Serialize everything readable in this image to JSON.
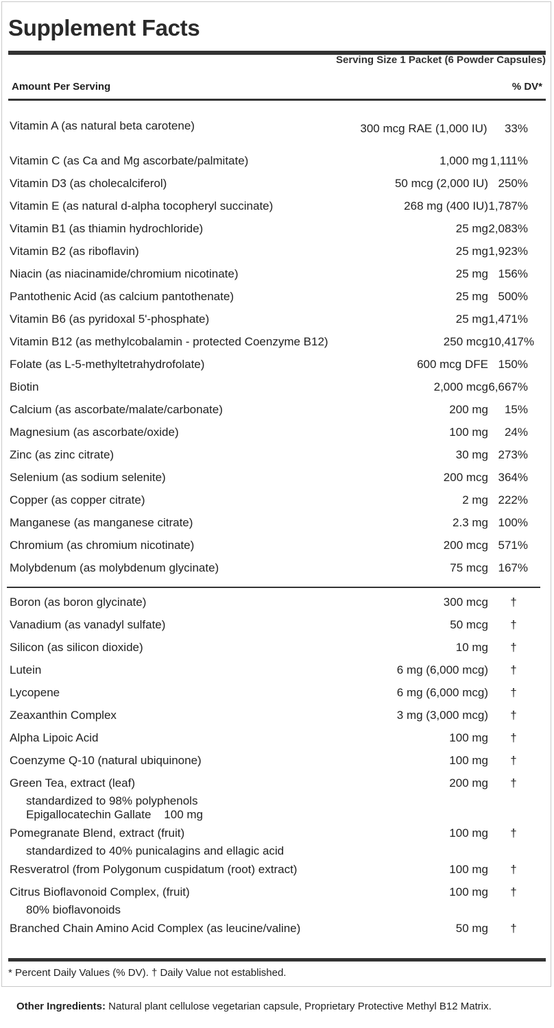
{
  "title": "Supplement Facts",
  "serving_size": "Serving Size 1 Packet (6 Powder Capsules)",
  "header": {
    "amount_per_serving": "Amount Per Serving",
    "dv": "% DV*"
  },
  "vitamin_rows": [
    {
      "name": "Vitamin A (as natural beta carotene)",
      "amount": "300 mcg RAE (1,000 IU)",
      "dv": "33%"
    },
    {
      "name": "Vitamin C (as Ca and Mg ascorbate/palmitate)",
      "amount": "1,000 mg",
      "dv": "1,111%"
    },
    {
      "name": "Vitamin D3 (as cholecalciferol)",
      "amount": "50 mcg (2,000 IU)",
      "dv": "250%"
    },
    {
      "name": "Vitamin E (as natural d-alpha tocopheryl succinate)",
      "amount": "268 mg (400 IU)",
      "dv": "1,787%"
    },
    {
      "name": "Vitamin B1 (as thiamin hydrochloride)",
      "amount": "25 mg",
      "dv": "2,083%"
    },
    {
      "name": "Vitamin B2 (as riboflavin)",
      "amount": "25 mg",
      "dv": "1,923%"
    },
    {
      "name": "Niacin (as niacinamide/chromium nicotinate)",
      "amount": "25 mg",
      "dv": "156%"
    },
    {
      "name": "Pantothenic Acid (as calcium pantothenate)",
      "amount": "25 mg",
      "dv": "500%"
    },
    {
      "name": "Vitamin B6 (as pyridoxal 5'-phosphate)",
      "amount": "25 mg",
      "dv": "1,471%"
    },
    {
      "name": "Vitamin B12 (as methylcobalamin - protected Coenzyme B12)",
      "amount": "250 mcg",
      "dv": "10,417%"
    },
    {
      "name": "Folate (as L-5-methyltetrahydrofolate)",
      "amount": "600 mcg DFE",
      "dv": "150%"
    },
    {
      "name": "Biotin",
      "amount": "2,000 mcg",
      "dv": "6,667%"
    },
    {
      "name": "Calcium (as ascorbate/malate/carbonate)",
      "amount": "200 mg",
      "dv": "15%"
    },
    {
      "name": "Magnesium (as ascorbate/oxide)",
      "amount": "100 mg",
      "dv": "24%"
    },
    {
      "name": "Zinc (as zinc citrate)",
      "amount": "30 mg",
      "dv": "273%"
    },
    {
      "name": "Selenium (as sodium selenite)",
      "amount": "200 mcg",
      "dv": "364%"
    },
    {
      "name": "Copper (as copper citrate)",
      "amount": "2 mg",
      "dv": "222%"
    },
    {
      "name": "Manganese (as manganese citrate)",
      "amount": "2.3 mg",
      "dv": "100%"
    },
    {
      "name": "Chromium (as chromium nicotinate)",
      "amount": "200 mcg",
      "dv": "571%"
    },
    {
      "name": "Molybdenum (as molybdenum glycinate)",
      "amount": "75 mcg",
      "dv": "167%"
    }
  ],
  "other_rows": [
    {
      "name": "Boron (as boron glycinate)",
      "amount": "300 mcg",
      "dv": "†"
    },
    {
      "name": "Vanadium (as vanadyl sulfate)",
      "amount": "50 mcg",
      "dv": "†"
    },
    {
      "name": "Silicon (as silicon dioxide)",
      "amount": "10 mg",
      "dv": "†"
    },
    {
      "name": "Lutein",
      "amount": "6 mg (6,000 mcg)",
      "dv": "†"
    },
    {
      "name": "Lycopene",
      "amount": "6 mg (6,000 mcg)",
      "dv": "†"
    },
    {
      "name": "Zeaxanthin Complex",
      "amount": "3 mg (3,000 mcg)",
      "dv": "†"
    },
    {
      "name": "Alpha Lipoic Acid",
      "amount": "100 mg",
      "dv": "†"
    },
    {
      "name": "Coenzyme Q-10 (natural ubiquinone)",
      "amount": "100 mg",
      "dv": "†"
    },
    {
      "name": "Green Tea, extract (leaf)",
      "amount": "200 mg",
      "dv": "†",
      "sub": [
        "standardized to 98% polyphenols",
        "Epigallocatechin Gallate    100 mg"
      ]
    },
    {
      "name": "Pomegranate Blend, extract (fruit)",
      "amount": "100 mg",
      "dv": "†",
      "sub": [
        "standardized to 40% punicalagins and ellagic acid"
      ]
    },
    {
      "name": "Resveratrol (from Polygonum cuspidatum (root) extract)",
      "amount": "100 mg",
      "dv": "†"
    },
    {
      "name": "Citrus Bioflavonoid Complex, (fruit)",
      "amount": "100 mg",
      "dv": "†",
      "sub": [
        "80% bioflavonoids"
      ]
    },
    {
      "name": "Branched Chain Amino Acid Complex (as leucine/valine)",
      "amount": "50 mg",
      "dv": "†"
    }
  ],
  "footnote": "* Percent Daily Values (% DV). † Daily Value not established.",
  "other_ingredients": {
    "label": "Other Ingredients:",
    "text": " Natural plant cellulose vegetarian capsule, Proprietary Protective Methyl B12 Matrix."
  }
}
